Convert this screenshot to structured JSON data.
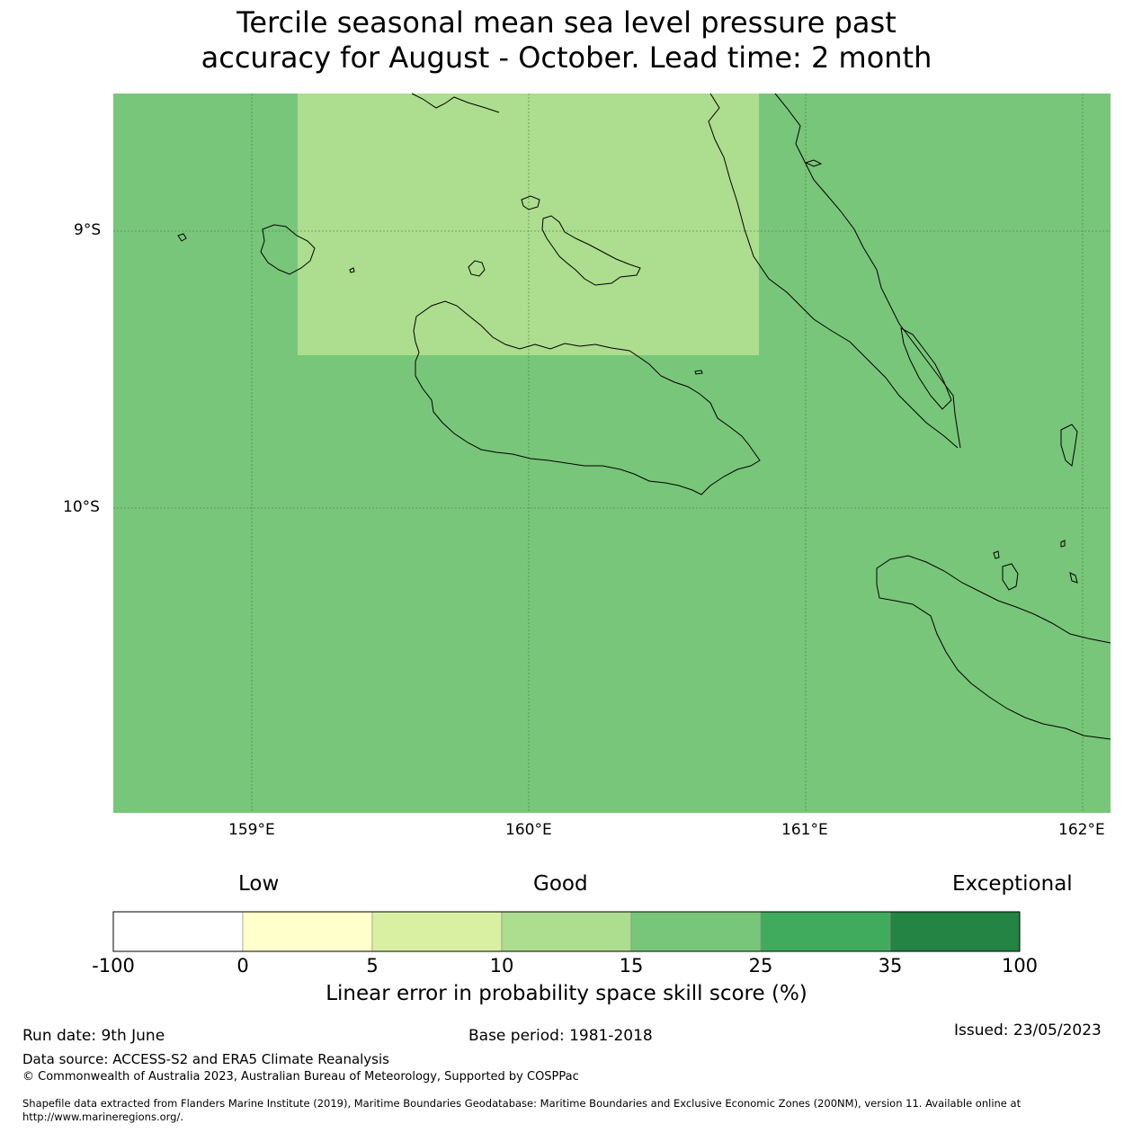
{
  "title": {
    "line1": "Tercile seasonal mean sea level pressure past",
    "line2": "accuracy for August - October. Lead time: 2 month"
  },
  "map": {
    "lat_labels": [
      "9°S",
      "10°S"
    ],
    "lon_labels": [
      "159°E",
      "160°E",
      "161°E",
      "162°E"
    ],
    "background_class_color": "#78c679",
    "highlight_class_color": "#addd8e"
  },
  "colorbar": {
    "categories": {
      "low": "Low",
      "good": "Good",
      "exceptional": "Exceptional"
    },
    "boundaries": [
      "-100",
      "0",
      "5",
      "10",
      "15",
      "25",
      "35",
      "100"
    ],
    "colors": [
      "#ffffff",
      "#ffffcc",
      "#d9f0a3",
      "#addd8e",
      "#78c679",
      "#41ab5d",
      "#238443"
    ],
    "label": "Linear error in probability space skill score (%)"
  },
  "footer": {
    "run_date": "Run date: 9th June",
    "base_period": "Base period: 1981-2018",
    "issued": "Issued: 23/05/2023",
    "data_source": "Data source: ACCESS-S2 and ERA5 Climate Reanalysis",
    "copyright": "© Commonwealth of Australia 2023, Australian Bureau of Meteorology, Supported by COSPPac",
    "shapefile_line1": "Shapefile data extracted from Flanders Marine Institute (2019), Maritime Boundaries Geodatabase: Maritime Boundaries and Exclusive Economic Zones (200NM), version 11. Available online at",
    "shapefile_line2": "http://www.marineregions.org/."
  }
}
